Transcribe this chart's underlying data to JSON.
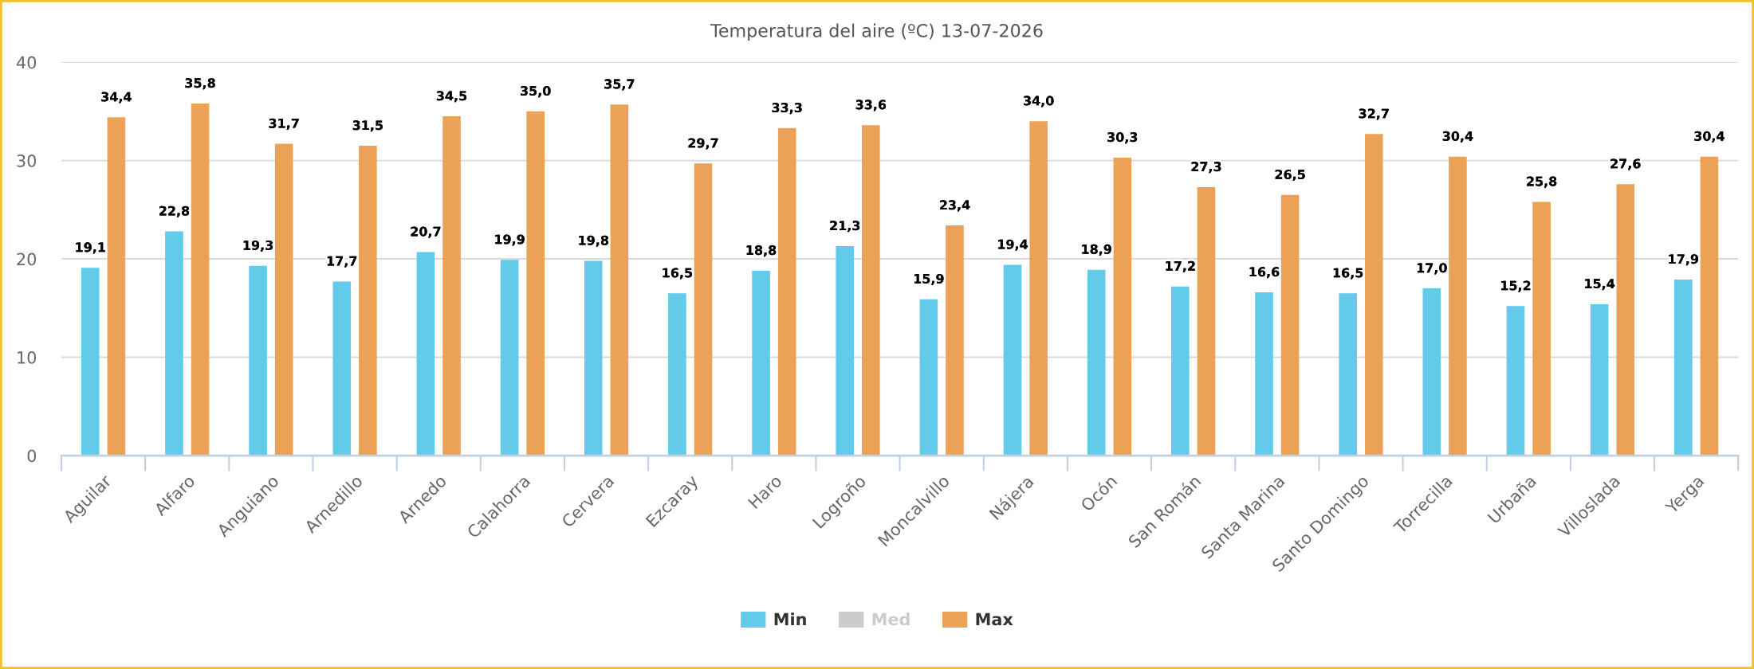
{
  "chart_data": {
    "type": "bar",
    "title": "Temperatura del aire (ºC) 13-07-2026",
    "categories": [
      "Aguilar",
      "Alfaro",
      "Anguiano",
      "Arnedillo",
      "Arnedo",
      "Calahorra",
      "Cervera",
      "Ezcaray",
      "Haro",
      "Logroño",
      "Moncalvillo",
      "Nájera",
      "Ocón",
      "San Román",
      "Santa Marina",
      "Santo Domingo",
      "Torrecilla",
      "Urbaña",
      "Villoslada",
      "Yerga"
    ],
    "series": [
      {
        "name": "Min",
        "color": "#62cbea",
        "values": [
          19.1,
          22.8,
          19.3,
          17.7,
          20.7,
          19.9,
          19.8,
          16.5,
          18.8,
          21.3,
          15.9,
          19.4,
          18.9,
          17.2,
          16.6,
          16.5,
          17.0,
          15.2,
          15.4,
          17.9
        ],
        "value_labels": [
          "19,1",
          "22,8",
          "19,3",
          "17,7",
          "20,7",
          "19,9",
          "19,8",
          "16,5",
          "18,8",
          "21,3",
          "15,9",
          "19,4",
          "18,9",
          "17,2",
          "16,6",
          "16,5",
          "17,0",
          "15,2",
          "15,4",
          "17,9"
        ]
      },
      {
        "name": "Med",
        "color": "#cccccc",
        "values": [
          null,
          null,
          null,
          null,
          null,
          null,
          null,
          null,
          null,
          null,
          null,
          null,
          null,
          null,
          null,
          null,
          null,
          null,
          null,
          null
        ]
      },
      {
        "name": "Max",
        "color": "#eba257",
        "values": [
          34.4,
          35.8,
          31.7,
          31.5,
          34.5,
          35.0,
          35.7,
          29.7,
          33.3,
          33.6,
          23.4,
          34.0,
          30.3,
          27.3,
          26.5,
          32.7,
          30.4,
          25.8,
          27.6,
          30.4
        ],
        "value_labels": [
          "34,4",
          "35,8",
          "31,7",
          "31,5",
          "34,5",
          "35,0",
          "35,7",
          "29,7",
          "33,3",
          "33,6",
          "23,4",
          "34,0",
          "30,3",
          "27,3",
          "26,5",
          "32,7",
          "30,4",
          "25,8",
          "27,6",
          "30,4"
        ]
      }
    ],
    "ylim": [
      0,
      40
    ],
    "yticks": [
      0,
      10,
      20,
      30,
      40
    ],
    "grid": "y",
    "legend": "bottom"
  }
}
